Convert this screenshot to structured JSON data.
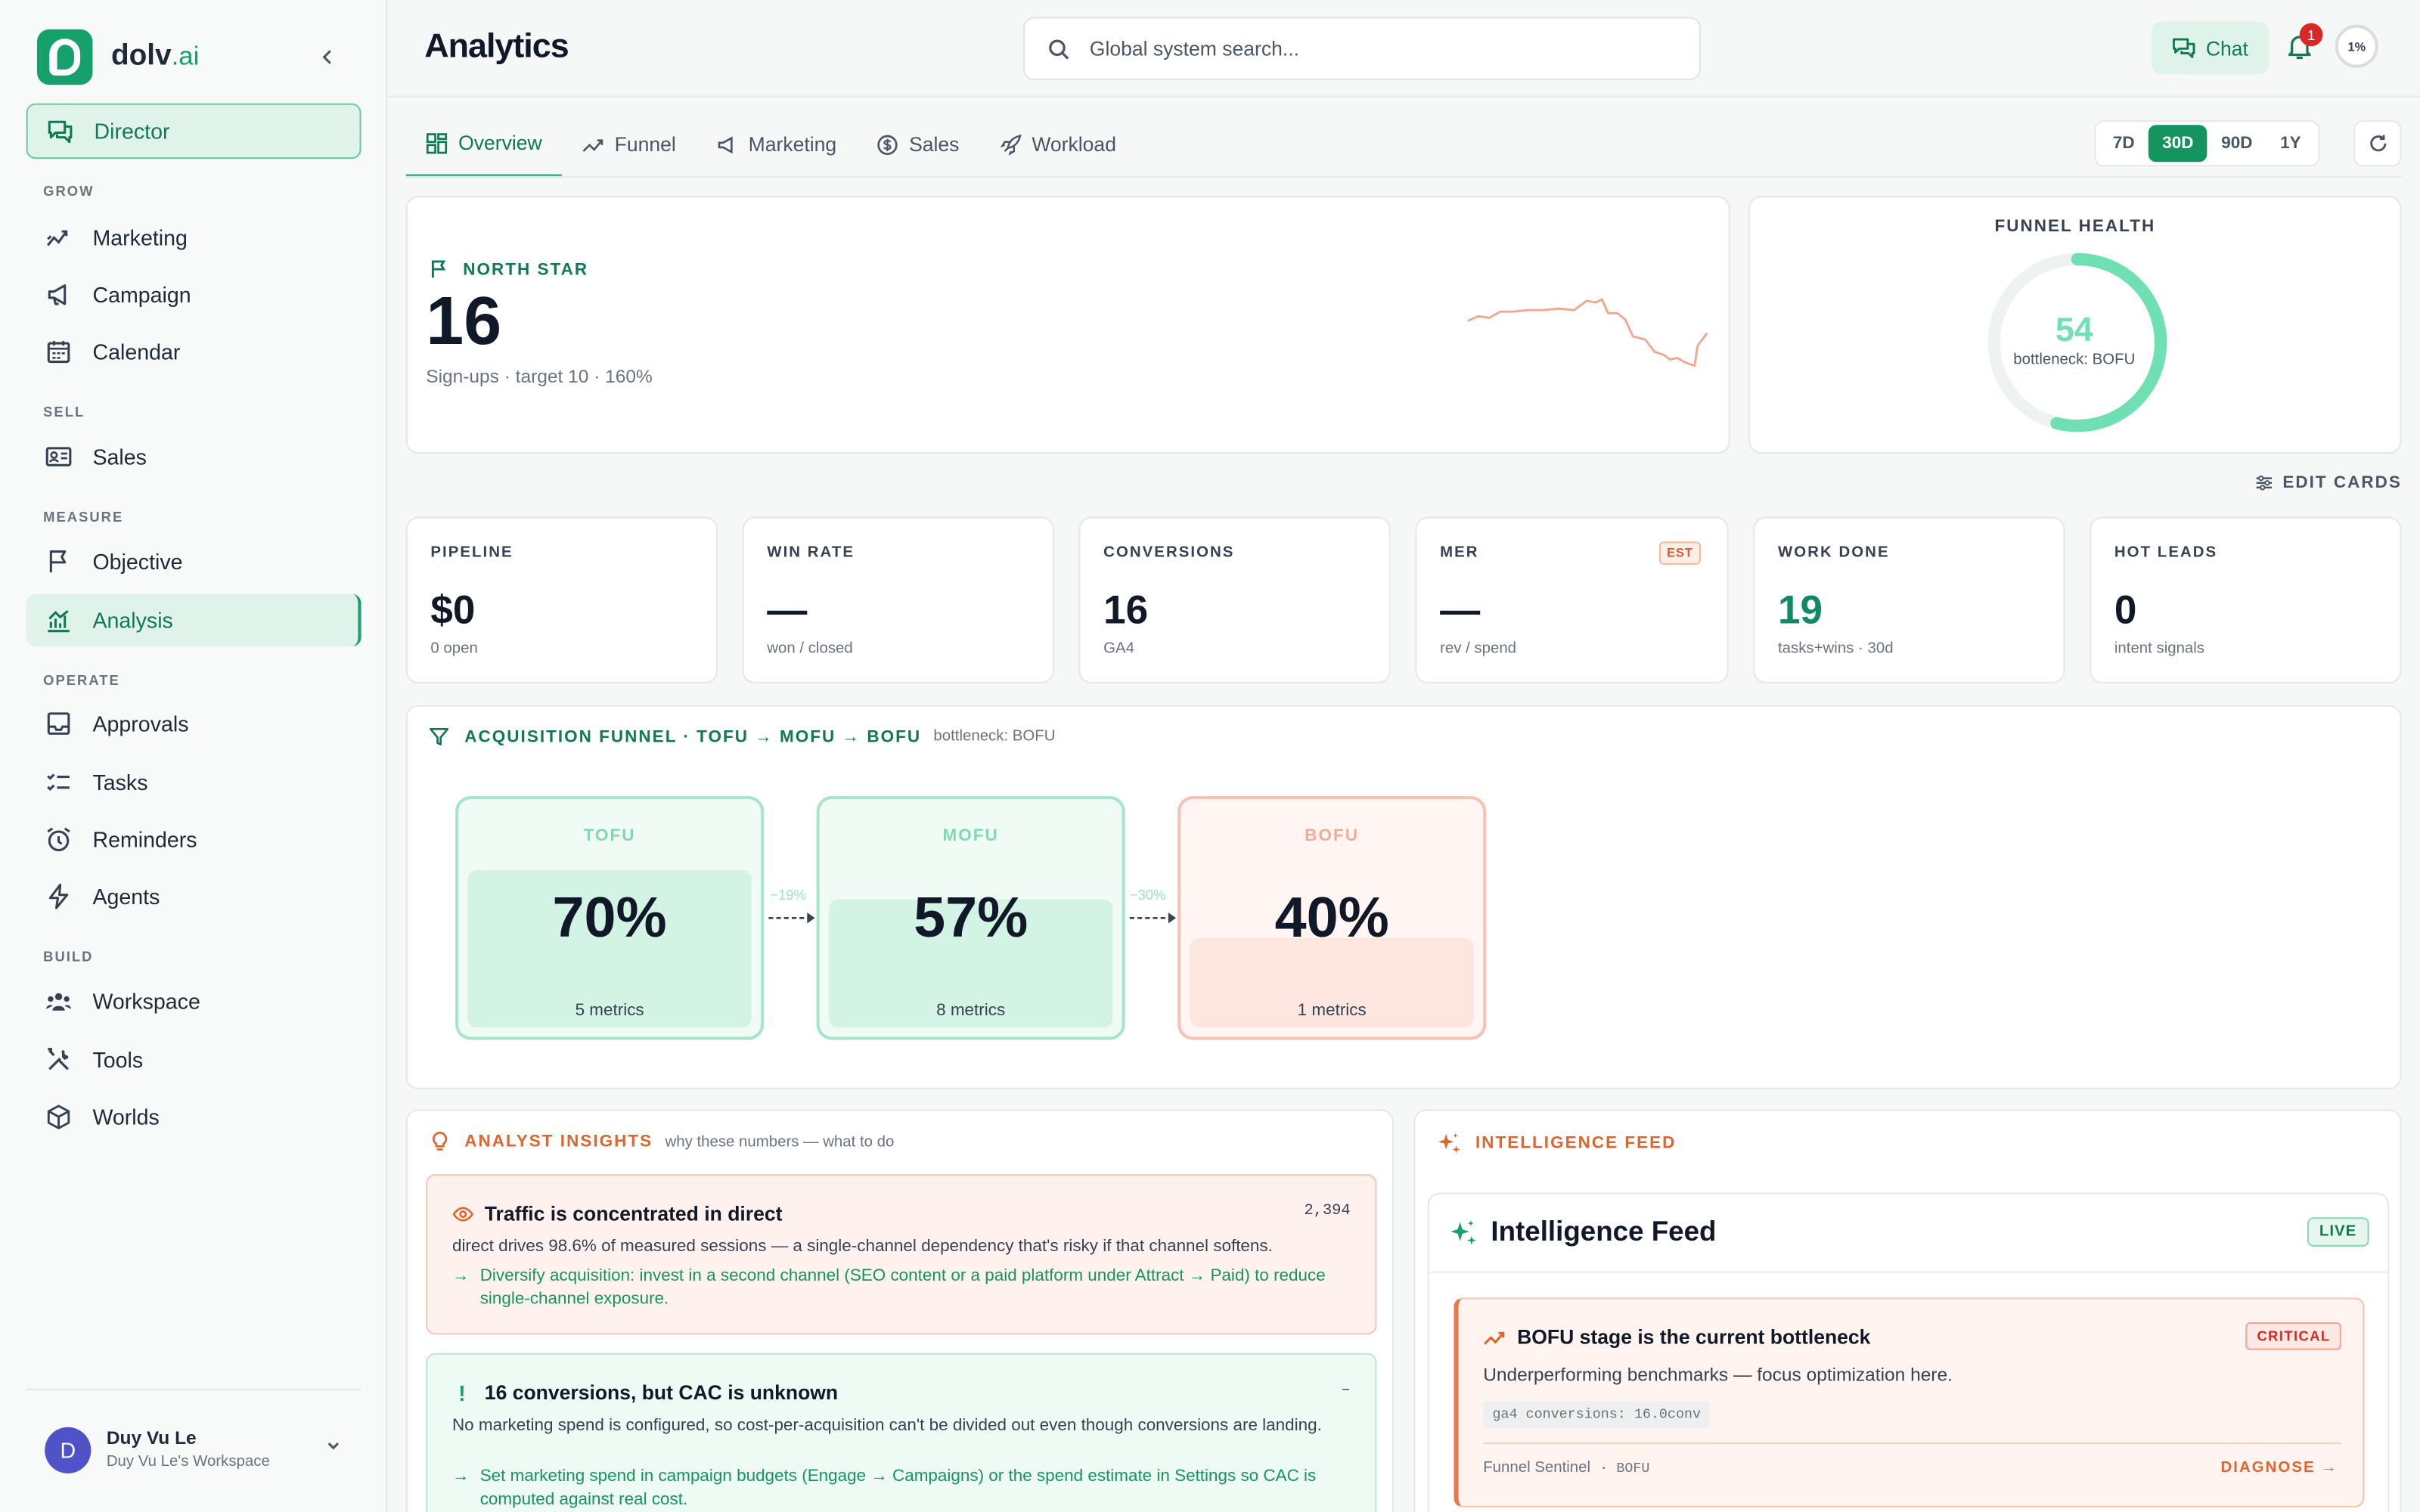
{
  "brand": {
    "name": "dolv",
    "suffix": ".ai"
  },
  "sidebar": {
    "director": "Director",
    "sections": [
      {
        "label": "GROW",
        "items": [
          {
            "label": "Marketing",
            "icon": "trend-icon"
          },
          {
            "label": "Campaign",
            "icon": "megaphone-icon"
          },
          {
            "label": "Calendar",
            "icon": "calendar-icon"
          }
        ]
      },
      {
        "label": "SELL",
        "items": [
          {
            "label": "Sales",
            "icon": "id-card-icon"
          }
        ]
      },
      {
        "label": "MEASURE",
        "items": [
          {
            "label": "Objective",
            "icon": "flag-icon"
          },
          {
            "label": "Analysis",
            "icon": "chart-icon"
          }
        ]
      },
      {
        "label": "OPERATE",
        "items": [
          {
            "label": "Approvals",
            "icon": "inbox-icon"
          },
          {
            "label": "Tasks",
            "icon": "checklist-icon"
          },
          {
            "label": "Reminders",
            "icon": "alarm-icon"
          },
          {
            "label": "Agents",
            "icon": "bolt-icon"
          }
        ]
      },
      {
        "label": "BUILD",
        "items": [
          {
            "label": "Workspace",
            "icon": "users-icon"
          },
          {
            "label": "Tools",
            "icon": "tools-icon"
          },
          {
            "label": "Worlds",
            "icon": "cube-icon"
          }
        ]
      }
    ],
    "active": "Analysis",
    "user": {
      "initial": "D",
      "name": "Duy Vu Le",
      "workspace": "Duy Vu Le's Workspace"
    }
  },
  "header": {
    "title": "Analytics",
    "search_placeholder": "Global system search...",
    "chat_label": "Chat",
    "notification_count": "1",
    "progress": "1%"
  },
  "tabs": [
    {
      "label": "Overview",
      "active": true
    },
    {
      "label": "Funnel"
    },
    {
      "label": "Marketing"
    },
    {
      "label": "Sales"
    },
    {
      "label": "Workload"
    }
  ],
  "ranges": [
    {
      "label": "7D"
    },
    {
      "label": "30D",
      "active": true
    },
    {
      "label": "90D"
    },
    {
      "label": "1Y"
    }
  ],
  "north_star": {
    "label": "NORTH STAR",
    "value": "16",
    "subtitle": "Sign-ups · target 10 · 160%"
  },
  "funnel_health": {
    "label": "FUNNEL HEALTH",
    "value": "54",
    "subtitle": "bottleneck: BOFU",
    "score": 54
  },
  "edit_cards": "EDIT CARDS",
  "kpis": [
    {
      "label": "PIPELINE",
      "value": "$0",
      "sub": "0 open"
    },
    {
      "label": "WIN RATE",
      "value": "—",
      "sub": "won / closed"
    },
    {
      "label": "CONVERSIONS",
      "value": "16",
      "sub": "GA4"
    },
    {
      "label": "MER",
      "value": "—",
      "sub": "rev / spend",
      "badge": "EST"
    },
    {
      "label": "WORK DONE",
      "value": "19",
      "sub": "tasks+wins · 30d"
    },
    {
      "label": "HOT LEADS",
      "value": "0",
      "sub": "intent signals"
    }
  ],
  "funnel": {
    "title": "ACQUISITION FUNNEL · TOFU → MOFU → BOFU",
    "bottleneck": "bottleneck: BOFU",
    "stages": [
      {
        "name": "TOFU",
        "value": "70%",
        "metrics": "5 metrics",
        "fill": 0.7
      },
      {
        "name": "MOFU",
        "value": "57%",
        "metrics": "8 metrics",
        "fill": 0.57
      },
      {
        "name": "BOFU",
        "value": "40%",
        "metrics": "1 metrics",
        "fill": 0.4
      }
    ],
    "drops": [
      "−19%",
      "−30%"
    ]
  },
  "insights": {
    "title": "ANALYST INSIGHTS",
    "subtitle": "why these numbers — what to do",
    "items": [
      {
        "title": "Traffic is concentrated in direct",
        "number": "2,394",
        "body": "direct drives 98.6% of measured sessions — a single-channel dependency that's risky if that channel softens.",
        "action": "Diversify acquisition: invest in a second channel (SEO content or a paid platform under Attract → Paid) to reduce single-channel exposure."
      },
      {
        "title": "16 conversions, but CAC is unknown",
        "number": "–",
        "body": "No marketing spend is configured, so cost-per-acquisition can't be divided out even though conversions are landing.",
        "action": "Set marketing spend in campaign budgets (Engage → Campaigns) or the spend estimate in Settings so CAC is computed against real cost."
      }
    ]
  },
  "feed": {
    "title": "INTELLIGENCE FEED",
    "heading": "Intelligence Feed",
    "live": "LIVE",
    "alert": {
      "title": "BOFU stage is the current bottleneck",
      "severity": "CRITICAL",
      "body": "Underperforming benchmarks — focus optimization here.",
      "code": "ga4 conversions: 16.0conv",
      "source": "Funnel Sentinel",
      "stage": "BOFU",
      "action": "DIAGNOSE →"
    }
  },
  "colors": {
    "accent": "#16a06c",
    "critical": "#dc2626",
    "warning": "#e0642c"
  }
}
